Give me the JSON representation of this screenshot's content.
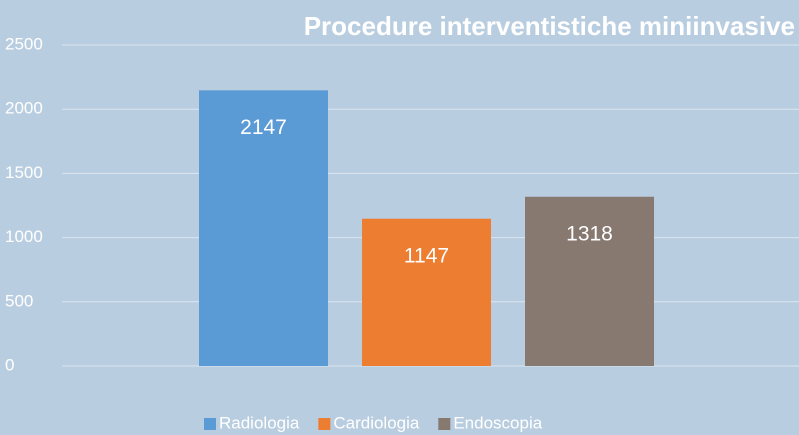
{
  "chart_data": {
    "type": "bar",
    "title": "Procedure interventistiche miniinvasive",
    "categories": [
      null
    ],
    "series": [
      {
        "name": "Radiologia",
        "color": "#5b9bd5",
        "values": [
          2147
        ]
      },
      {
        "name": "Cardiologia",
        "color": "#ed7d31",
        "values": [
          1147
        ]
      },
      {
        "name": "Endoscopia",
        "color": "#877870",
        "values": [
          1318
        ]
      }
    ],
    "ylim": [
      0,
      2500
    ],
    "yticks": [
      0,
      500,
      1000,
      1500,
      2000,
      2500
    ],
    "grid": true,
    "legend": "bottom"
  }
}
